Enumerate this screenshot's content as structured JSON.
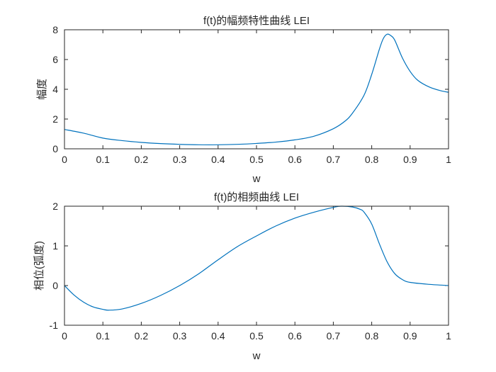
{
  "figure": {
    "background": "#ffffff",
    "line_color": "#0072bd",
    "axis_color": "#262626"
  },
  "chart_data": [
    {
      "type": "line",
      "title": "f(t)的幅频特性曲线 LEI",
      "xlabel": "w",
      "ylabel": "幅度",
      "xlim": [
        0,
        1
      ],
      "ylim": [
        0,
        8
      ],
      "xticks": [
        0,
        0.1,
        0.2,
        0.3,
        0.4,
        0.5,
        0.6,
        0.7,
        0.8,
        0.9,
        1
      ],
      "xtick_labels": [
        "0",
        "0.1",
        "0.2",
        "0.3",
        "0.4",
        "0.5",
        "0.6",
        "0.7",
        "0.8",
        "0.9",
        "1"
      ],
      "yticks": [
        0,
        2,
        4,
        6,
        8
      ],
      "ytick_labels": [
        "0",
        "2",
        "4",
        "6",
        "8"
      ],
      "grid": false,
      "legend": null,
      "series": [
        {
          "name": "amplitude",
          "x": [
            0,
            0.05,
            0.1,
            0.15,
            0.2,
            0.25,
            0.3,
            0.35,
            0.4,
            0.45,
            0.5,
            0.55,
            0.6,
            0.65,
            0.7,
            0.73,
            0.75,
            0.78,
            0.8,
            0.82,
            0.83,
            0.84,
            0.85,
            0.86,
            0.88,
            0.9,
            0.92,
            0.95,
            0.98,
            1.0
          ],
          "y": [
            1.3,
            1.05,
            0.72,
            0.55,
            0.43,
            0.35,
            0.3,
            0.27,
            0.27,
            0.3,
            0.36,
            0.45,
            0.6,
            0.85,
            1.35,
            1.85,
            2.4,
            3.6,
            5.0,
            6.7,
            7.4,
            7.7,
            7.6,
            7.3,
            6.1,
            5.2,
            4.6,
            4.15,
            3.9,
            3.8
          ]
        }
      ]
    },
    {
      "type": "line",
      "title": "f(t)的相频曲线 LEI",
      "xlabel": "w",
      "ylabel": "相位(弧度)",
      "xlim": [
        0,
        1
      ],
      "ylim": [
        -1,
        2
      ],
      "xticks": [
        0,
        0.1,
        0.2,
        0.3,
        0.4,
        0.5,
        0.6,
        0.7,
        0.8,
        0.9,
        1
      ],
      "xtick_labels": [
        "0",
        "0.1",
        "0.2",
        "0.3",
        "0.4",
        "0.5",
        "0.6",
        "0.7",
        "0.8",
        "0.9",
        "1"
      ],
      "yticks": [
        -1,
        0,
        1,
        2
      ],
      "ytick_labels": [
        "-1",
        "0",
        "1",
        "2"
      ],
      "grid": false,
      "legend": null,
      "series": [
        {
          "name": "phase",
          "x": [
            0,
            0.025,
            0.05,
            0.075,
            0.1,
            0.115,
            0.15,
            0.2,
            0.25,
            0.3,
            0.35,
            0.4,
            0.45,
            0.5,
            0.55,
            0.6,
            0.65,
            0.7,
            0.72,
            0.75,
            0.77,
            0.78,
            0.8,
            0.82,
            0.84,
            0.86,
            0.88,
            0.9,
            0.95,
            1.0
          ],
          "y": [
            0,
            -0.24,
            -0.42,
            -0.54,
            -0.6,
            -0.62,
            -0.59,
            -0.45,
            -0.25,
            0.0,
            0.3,
            0.65,
            0.98,
            1.25,
            1.5,
            1.7,
            1.85,
            1.97,
            2.0,
            1.98,
            1.92,
            1.85,
            1.55,
            1.05,
            0.6,
            0.3,
            0.15,
            0.08,
            0.03,
            0.0
          ]
        }
      ]
    }
  ]
}
